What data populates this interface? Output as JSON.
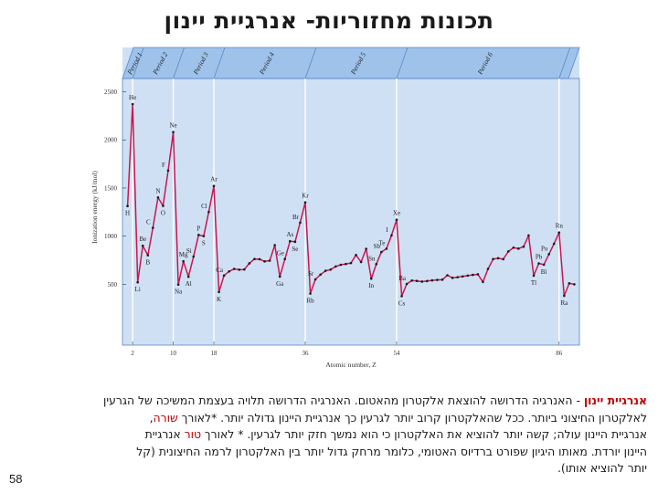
{
  "title": "תכונות מחזוריות- אנרגיית יינון",
  "page_number": "58",
  "paragraph": {
    "term": "אנרגיית יינון",
    "line1": " - האנרגיה הדרושה להוצאת אלקטרון מהאטום. האנרגיה הדרושה תלויה בעצמת המשיכה של הגרעין",
    "line2a": "לאלקטרון החיצוני ביותר. ככל שהאלקטרון קרוב יותר לגרעין כך אנרגיית היינון גדולה יותר. *לאורך ",
    "line2_hl": "שורה",
    "line2b": ",",
    "line3a": "אנרגיית היינון עולה; קשה יותר להוציא את האלקטרון כי הוא נמשך חזק יותר לגרעין. * לאורך ",
    "line3_hl": "טור",
    "line3b": " אנרגיית",
    "line4": "היינון יורדת. מאותו היגיון שפורט ברדיוס האטומי, כלומר מרחק גדול יותר בין האלקטרון לרמה החיצונית (קל",
    "line5": "יותר להוציא אותו)."
  },
  "chart_data": {
    "type": "line",
    "title": "",
    "xlabel": "Atomic number, Z",
    "ylabel": "Ionization energy (kJ/mol)",
    "xlim": [
      0,
      90
    ],
    "ylim": [
      0,
      2600
    ],
    "yticks": [
      500,
      1000,
      1500,
      2000,
      2500
    ],
    "xticks": [
      2,
      10,
      18,
      36,
      54,
      86
    ],
    "grid": false,
    "colors": {
      "line": "#c8174f",
      "marker": "#1a1a1a",
      "plot_bg": "#cfe0f4",
      "band_bg": "#9ec2ea",
      "frame": "#5a88c8"
    },
    "period_boundaries": [
      2,
      10,
      18,
      36,
      54,
      86
    ],
    "period_labels": [
      "Period 1",
      "Period 2",
      "Period 3",
      "Period 4",
      "Period 5",
      "Period 6"
    ],
    "series": [
      {
        "x": [
          1,
          2,
          3,
          4,
          5,
          6,
          7,
          8,
          9,
          10,
          11,
          12,
          13,
          14,
          15,
          16,
          17,
          18,
          19,
          20,
          21,
          22,
          23,
          24,
          25,
          26,
          27,
          28,
          29,
          30,
          31,
          32,
          33,
          34,
          35,
          36,
          37,
          38,
          39,
          40,
          41,
          42,
          43,
          44,
          45,
          46,
          47,
          48,
          49,
          50,
          51,
          52,
          53,
          54,
          55,
          56,
          57,
          58,
          59,
          60,
          61,
          62,
          63,
          64,
          65,
          66,
          67,
          68,
          69,
          70,
          71,
          72,
          73,
          74,
          75,
          76,
          77,
          78,
          79,
          80,
          81,
          82,
          83,
          84,
          85,
          86,
          87,
          88,
          89
        ],
        "values": [
          1312,
          2372,
          520,
          900,
          801,
          1086,
          1402,
          1314,
          1681,
          2081,
          496,
          738,
          578,
          787,
          1012,
          1000,
          1251,
          1521,
          419,
          590,
          633,
          659,
          651,
          653,
          717,
          762,
          760,
          737,
          745,
          906,
          579,
          762,
          947,
          941,
          1140,
          1351,
          403,
          550,
          600,
          640,
          652,
          684,
          702,
          710,
          720,
          804,
          731,
          868,
          558,
          709,
          834,
          869,
          1008,
          1170,
          376,
          503,
          538,
          534,
          527,
          533,
          540,
          545,
          547,
          593,
          566,
          573,
          581,
          589,
          597,
          603,
          524,
          659,
          761,
          770,
          760,
          840,
          880,
          870,
          890,
          1007,
          589,
          716,
          703,
          812,
          920,
          1037,
          380,
          509,
          499
        ]
      }
    ],
    "labels": [
      {
        "z": 1,
        "text": "H"
      },
      {
        "z": 2,
        "text": "He"
      },
      {
        "z": 3,
        "text": "Li"
      },
      {
        "z": 4,
        "text": "Be"
      },
      {
        "z": 5,
        "text": "B"
      },
      {
        "z": 6,
        "text": "C"
      },
      {
        "z": 7,
        "text": "N"
      },
      {
        "z": 8,
        "text": "O"
      },
      {
        "z": 9,
        "text": "F"
      },
      {
        "z": 10,
        "text": "Ne"
      },
      {
        "z": 11,
        "text": "Na"
      },
      {
        "z": 12,
        "text": "Mg"
      },
      {
        "z": 13,
        "text": "Al"
      },
      {
        "z": 14,
        "text": "Si"
      },
      {
        "z": 15,
        "text": "P"
      },
      {
        "z": 16,
        "text": "S"
      },
      {
        "z": 17,
        "text": "Cl"
      },
      {
        "z": 18,
        "text": "Ar"
      },
      {
        "z": 19,
        "text": "K"
      },
      {
        "z": 20,
        "text": "Ca"
      },
      {
        "z": 31,
        "text": "Ga"
      },
      {
        "z": 32,
        "text": "Ge"
      },
      {
        "z": 33,
        "text": "As"
      },
      {
        "z": 34,
        "text": "Se"
      },
      {
        "z": 35,
        "text": "Br"
      },
      {
        "z": 36,
        "text": "Kr"
      },
      {
        "z": 37,
        "text": "Rb"
      },
      {
        "z": 38,
        "text": "Sr"
      },
      {
        "z": 49,
        "text": "In"
      },
      {
        "z": 50,
        "text": "Sn"
      },
      {
        "z": 51,
        "text": "Sb"
      },
      {
        "z": 52,
        "text": "Te"
      },
      {
        "z": 53,
        "text": "I"
      },
      {
        "z": 54,
        "text": "Xe"
      },
      {
        "z": 55,
        "text": "Cs"
      },
      {
        "z": 56,
        "text": "Ba"
      },
      {
        "z": 81,
        "text": "Tl"
      },
      {
        "z": 82,
        "text": "Pb"
      },
      {
        "z": 83,
        "text": "Bi"
      },
      {
        "z": 84,
        "text": "Po"
      },
      {
        "z": 86,
        "text": "Rn"
      },
      {
        "z": 87,
        "text": "Ra"
      }
    ]
  }
}
